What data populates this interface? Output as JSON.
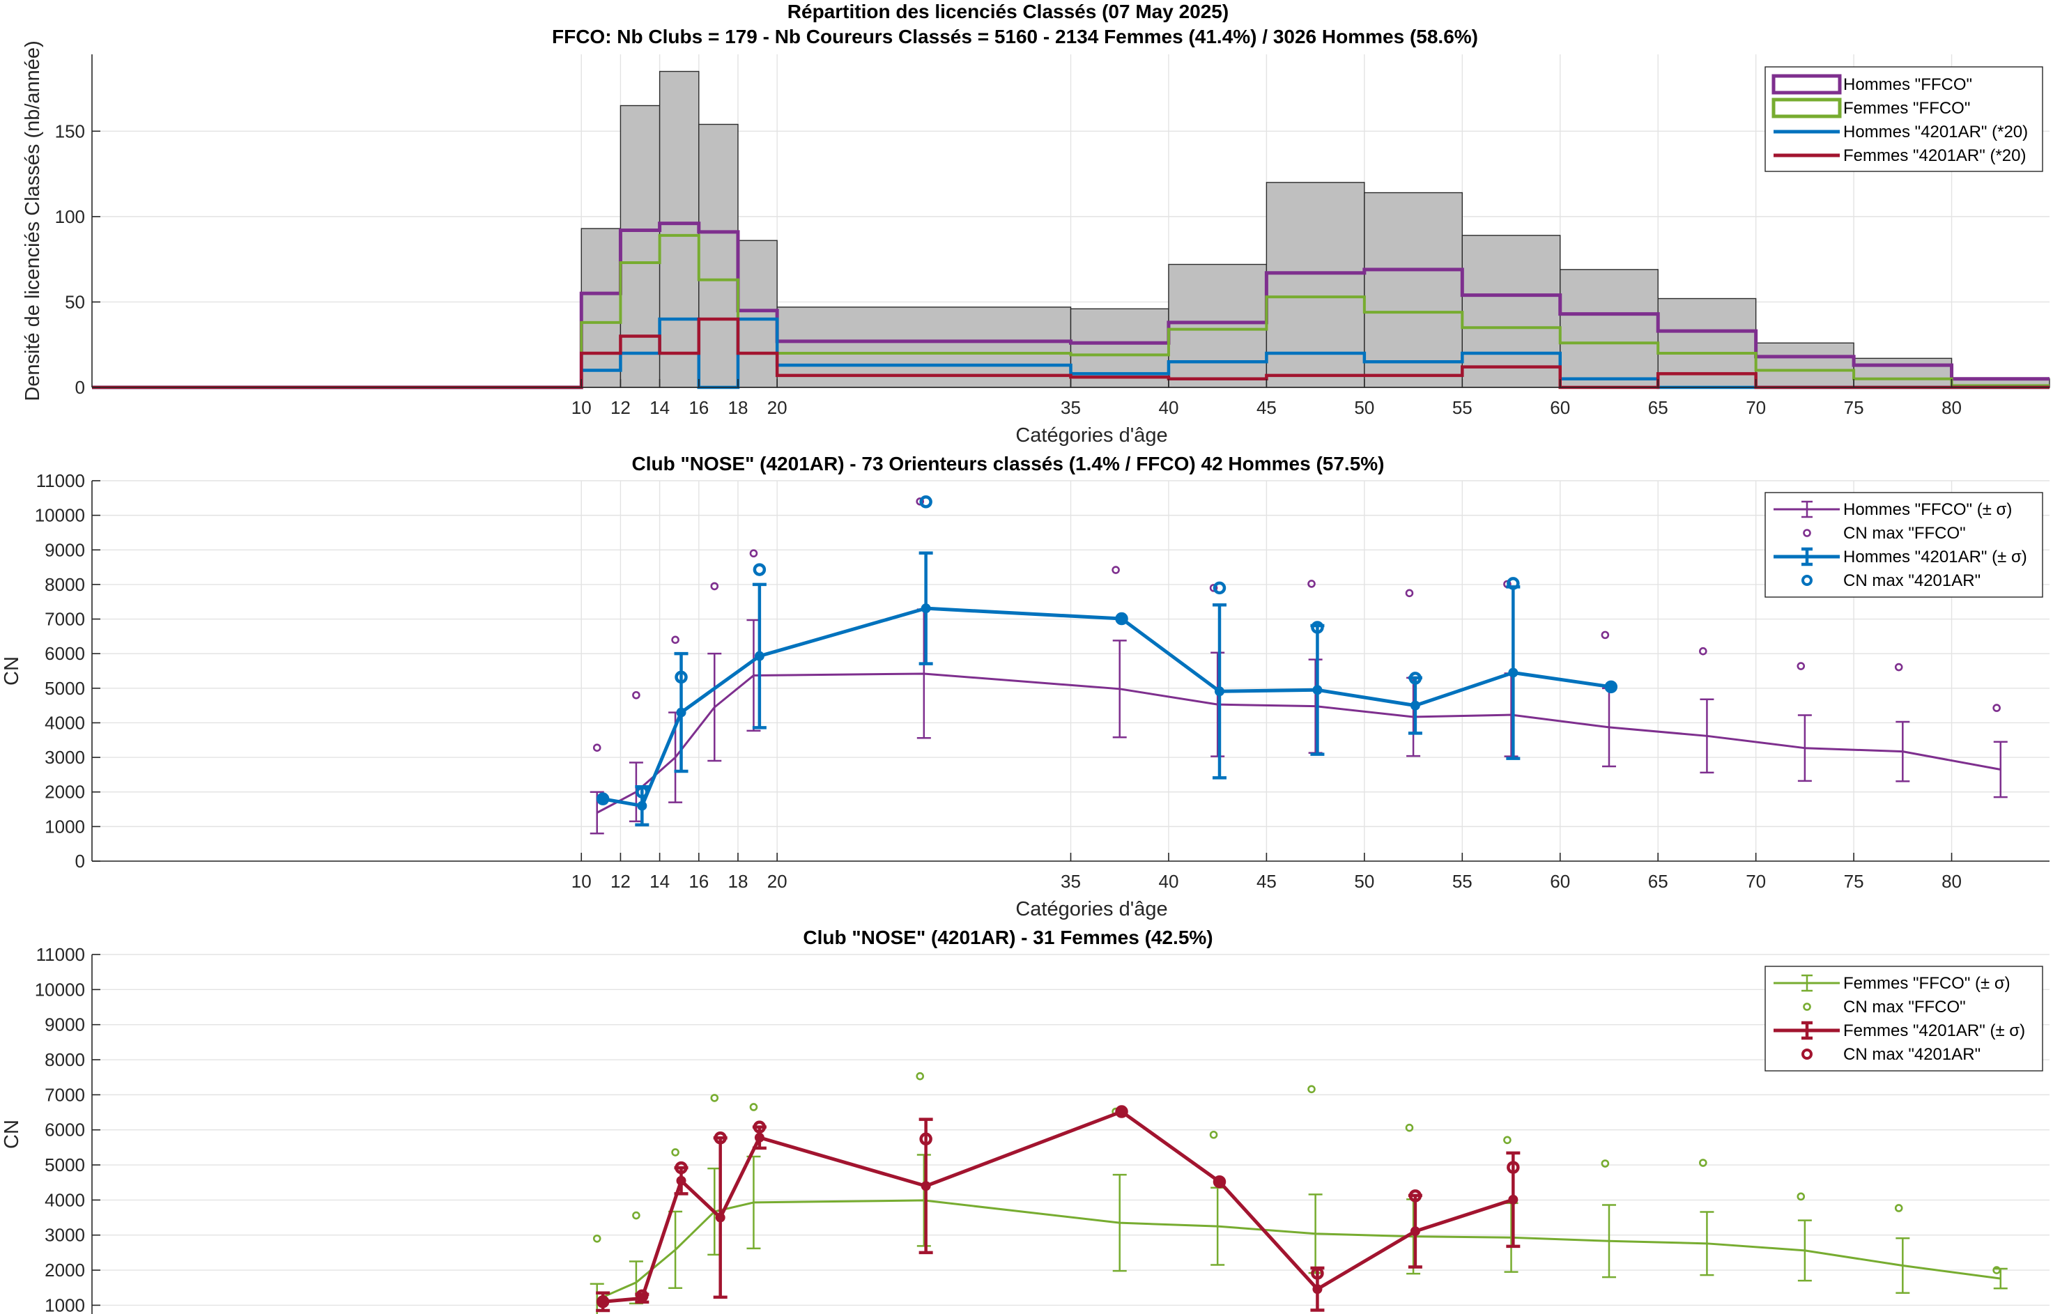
{
  "chart_data": [
    {
      "type": "histogram",
      "title": "Répartition des licenciés Classés (07 May 2025)",
      "subtitle": "FFCO: Nb Clubs = 179   -   Nb Coureurs Classés = 5160   -   2134 Femmes (41.4%) / 3026 Hommes (58.6%)",
      "xlabel": "Catégories d'âge",
      "ylabel": "Densité de licenciés Classés (nb/année)",
      "xlim": [
        -15,
        85
      ],
      "ylim": [
        0,
        195
      ],
      "xticks": [
        10,
        12,
        14,
        16,
        18,
        20,
        35,
        40,
        45,
        50,
        55,
        60,
        65,
        70,
        75,
        80
      ],
      "yticks": [
        0,
        50,
        100,
        150
      ],
      "grid": true,
      "legend_position": "top-right",
      "bin_edges": [
        -15,
        10,
        12,
        14,
        16,
        18,
        20,
        35,
        40,
        45,
        50,
        55,
        60,
        65,
        70,
        75,
        80,
        85
      ],
      "total_density": [
        0,
        93,
        165,
        185,
        154,
        86,
        47,
        46,
        72,
        120,
        114,
        89,
        69,
        52,
        26,
        17,
        5
      ],
      "series": [
        {
          "name": "Hommes \"FFCO\"",
          "color": "#7e2f8e",
          "values": [
            0,
            55,
            92,
            96,
            91,
            45,
            27,
            26,
            38,
            67,
            69,
            54,
            43,
            33,
            18,
            13,
            5
          ]
        },
        {
          "name": "Femmes \"FFCO\"",
          "color": "#77ac30",
          "values": [
            0,
            38,
            73,
            89,
            63,
            40,
            20,
            19,
            34,
            53,
            44,
            35,
            26,
            20,
            10,
            5,
            1
          ]
        },
        {
          "name": "Hommes \"4201AR\" (*20)",
          "color": "#0072bd",
          "values": [
            0,
            10,
            20,
            40,
            0,
            40,
            13,
            8,
            15,
            20,
            15,
            20,
            5,
            0,
            0,
            0,
            0
          ]
        },
        {
          "name": "Femmes \"4201AR\" (*20)",
          "color": "#a2142f",
          "values": [
            0,
            20,
            30,
            20,
            40,
            20,
            7,
            6,
            5,
            7,
            7,
            12,
            0,
            8,
            0,
            0,
            0
          ]
        }
      ]
    },
    {
      "type": "errorbar",
      "title": "Club \"NOSE\" (4201AR)  -  73 Orienteurs classés (1.4% / FFCO)  42 Hommes (57.5%)",
      "xlabel": "Catégories d'âge",
      "ylabel": "CN",
      "xlim": [
        -15,
        85
      ],
      "ylim": [
        0,
        11000
      ],
      "xticks": [
        10,
        12,
        14,
        16,
        18,
        20,
        35,
        40,
        45,
        50,
        55,
        60,
        65,
        70,
        75,
        80
      ],
      "yticks": [
        0,
        1000,
        2000,
        3000,
        4000,
        5000,
        6000,
        7000,
        8000,
        9000,
        10000,
        11000
      ],
      "grid": true,
      "legend_position": "top-right",
      "series": [
        {
          "name": "Hommes \"FFCO\" (± σ)",
          "color": "#7e2f8e",
          "x": [
            10.8,
            12.8,
            14.8,
            16.8,
            18.8,
            27.5,
            37.5,
            42.5,
            47.5,
            52.5,
            57.5,
            62.5,
            67.5,
            72.5,
            77.5,
            82.5
          ],
          "y": [
            1400,
            2000,
            3000,
            4450,
            5370,
            5420,
            4980,
            4530,
            4480,
            4170,
            4230,
            3870,
            3620,
            3270,
            3170,
            2650
          ],
          "err": [
            600,
            850,
            1300,
            1550,
            1600,
            1860,
            1400,
            1500,
            1350,
            1130,
            1200,
            1130,
            1060,
            950,
            860,
            800
          ]
        },
        {
          "name": "CN max \"FFCO\"",
          "color": "#7e2f8e",
          "x": [
            10.8,
            12.8,
            14.8,
            16.8,
            18.8,
            27.3,
            37.3,
            42.3,
            47.3,
            52.3,
            57.3,
            62.3,
            67.3,
            72.3,
            77.3,
            82.3
          ],
          "y": [
            3280,
            4800,
            6400,
            7950,
            8900,
            10400,
            8420,
            7900,
            8020,
            7750,
            8010,
            6540,
            6070,
            5640,
            5610,
            4430
          ]
        },
        {
          "name": "Hommes \"4201AR\" (± σ)",
          "color": "#0072bd",
          "x": [
            11.1,
            13.1,
            15.1,
            19.1,
            27.6,
            37.6,
            42.6,
            47.6,
            52.6,
            57.6,
            62.6
          ],
          "y": [
            1800,
            1600,
            4300,
            5930,
            7310,
            7010,
            4910,
            4950,
            4500,
            5450,
            5040
          ],
          "err": [
            0,
            550,
            1700,
            2070,
            1600,
            0,
            2500,
            1860,
            800,
            2480,
            0
          ]
        },
        {
          "name": "CN max \"4201AR\"",
          "color": "#0072bd",
          "x": [
            11.1,
            13.1,
            15.1,
            19.1,
            27.6,
            37.6,
            42.6,
            47.6,
            52.6,
            57.6,
            62.6
          ],
          "y": [
            1800,
            2000,
            5320,
            8430,
            10390,
            7010,
            7900,
            6760,
            5290,
            8030,
            5040
          ]
        }
      ]
    },
    {
      "type": "errorbar",
      "title": "Club \"NOSE\" (4201AR)  -  31 Femmes (42.5%)",
      "xlabel": "",
      "ylabel": "CN",
      "xlim": [
        -15,
        85
      ],
      "ylim": [
        750,
        11000
      ],
      "yticks": [
        1000,
        2000,
        3000,
        4000,
        5000,
        6000,
        7000,
        8000,
        9000,
        10000,
        11000
      ],
      "grid": true,
      "legend_position": "top-right",
      "series": [
        {
          "name": "Femmes \"FFCO\" (± σ)",
          "color": "#77ac30",
          "x": [
            10.8,
            12.8,
            14.8,
            16.8,
            18.8,
            27.5,
            37.5,
            42.5,
            47.5,
            52.5,
            57.5,
            62.5,
            67.5,
            72.5,
            77.5,
            82.5
          ],
          "y": [
            1160,
            1650,
            2580,
            3670,
            3930,
            3990,
            3350,
            3250,
            3040,
            2960,
            2930,
            2830,
            2760,
            2560,
            2130,
            1760
          ],
          "err": [
            450,
            600,
            1090,
            1230,
            1310,
            1300,
            1370,
            1100,
            1120,
            1060,
            980,
            1030,
            900,
            860,
            780,
            280
          ]
        },
        {
          "name": "CN max \"FFCO\"",
          "color": "#77ac30",
          "x": [
            10.8,
            12.8,
            14.8,
            16.8,
            18.8,
            27.3,
            37.3,
            42.3,
            47.3,
            52.3,
            57.3,
            62.3,
            67.3,
            72.3,
            77.3,
            82.3
          ],
          "y": [
            2900,
            3560,
            5360,
            6910,
            6650,
            7530,
            6520,
            5860,
            7160,
            6060,
            5710,
            5040,
            5060,
            4100,
            3770,
            2000
          ]
        },
        {
          "name": "Femmes \"4201AR\" (± σ)",
          "color": "#a2142f",
          "x": [
            11.1,
            13.1,
            15.1,
            17.1,
            19.1,
            27.6,
            37.6,
            42.6,
            47.6,
            52.6,
            57.6
          ],
          "y": [
            1100,
            1200,
            4550,
            3500,
            5780,
            4400,
            6520,
            4520,
            1460,
            3110,
            4010
          ],
          "err": [
            250,
            110,
            370,
            2270,
            300,
            1900,
            0,
            0,
            600,
            1020,
            1330
          ]
        },
        {
          "name": "CN max \"4201AR\"",
          "color": "#a2142f",
          "x": [
            11.1,
            13.1,
            15.1,
            17.1,
            19.1,
            27.6,
            37.6,
            42.6,
            47.6,
            52.6,
            57.6
          ],
          "y": [
            1100,
            1270,
            4920,
            5770,
            6080,
            5740,
            6520,
            4520,
            1910,
            4120,
            4930
          ]
        }
      ]
    }
  ]
}
